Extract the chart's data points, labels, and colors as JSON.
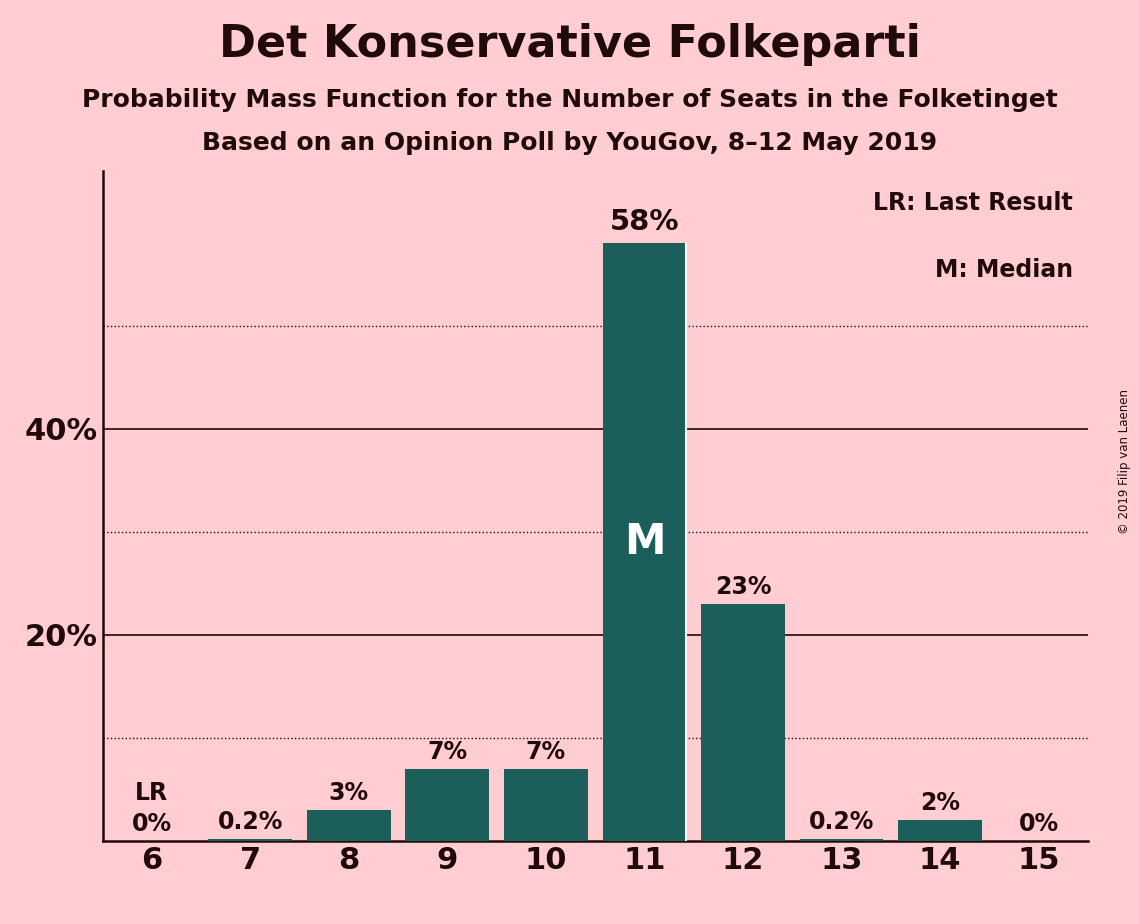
{
  "title": "Det Konservative Folkeparti",
  "subtitle1": "Probability Mass Function for the Number of Seats in the Folketinget",
  "subtitle2": "Based on an Opinion Poll by YouGov, 8–12 May 2019",
  "copyright": "© 2019 Filip van Laenen",
  "seats": [
    6,
    7,
    8,
    9,
    10,
    11,
    12,
    13,
    14,
    15
  ],
  "values": [
    0.0,
    0.2,
    3.0,
    7.0,
    7.0,
    58.0,
    23.0,
    0.2,
    2.0,
    0.0
  ],
  "bar_labels": [
    "0%",
    "0.2%",
    "3%",
    "7%",
    "7%",
    "58%",
    "23%",
    "0.2%",
    "2%",
    "0%"
  ],
  "bar_color": "#1B5E5A",
  "background_color": "#FFCDD2",
  "text_color": "#200a0a",
  "lr_seat": 6,
  "median_seat": 11,
  "solid_gridlines": [
    20,
    40
  ],
  "dotted_gridlines": [
    10,
    30,
    50
  ],
  "yticks": [
    20,
    40
  ],
  "ylim": [
    0,
    65
  ],
  "legend_lr": "LR: Last Result",
  "legend_m": "M: Median",
  "title_fontsize": 32,
  "subtitle_fontsize": 18,
  "label_fontsize": 17,
  "tick_fontsize": 22
}
